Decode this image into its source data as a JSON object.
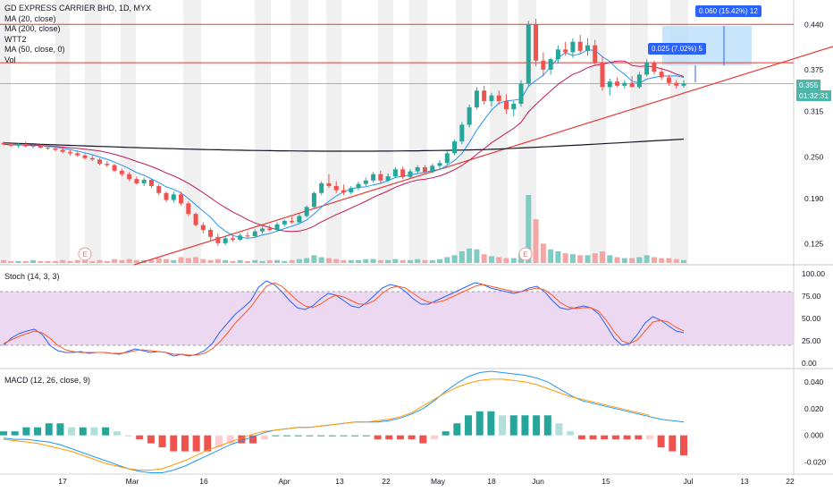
{
  "header": {
    "title": "GD EXPRESS CARRIER BHD, 1D, MYX",
    "indicators": [
      "MA (20, close)",
      "MA (200, close)",
      "WTT2",
      "MA (50, close, 0)",
      "Vol"
    ]
  },
  "stoch_label": "Stoch (14, 3, 3)",
  "macd_label": "MACD (12, 26, close, 9)",
  "price_axis": [
    "0.440",
    "0.375",
    "0.315",
    "0.250",
    "0.190",
    "0.125"
  ],
  "current_price": "0.355",
  "countdown": "01:32:31",
  "stoch_axis": [
    "100.00",
    "75.00",
    "50.00",
    "25.00",
    "0.00"
  ],
  "macd_axis": [
    "0.040",
    "0.020",
    "0.000",
    "-0.020"
  ],
  "x_labels": [
    "17",
    "Mar",
    "16",
    "Apr",
    "13",
    "22",
    "May",
    "18",
    "Jun",
    "15",
    "Jul",
    "13",
    "22"
  ],
  "measure_big": "0.060 (15.42%) 12",
  "measure_small": "0.025 (7.02%) 5",
  "earnings_marker": "E",
  "colors": {
    "up": "#26a69a",
    "down": "#ef5350",
    "ma20": "#2196f3",
    "ma200": "#131722",
    "ma50": "#c2185b",
    "hline": "#e53935",
    "trend": "#e53935",
    "stoch_k": "#2962ff",
    "stoch_d": "#ff5722",
    "stoch_band": "#e1bee7"
  },
  "chart_data": {
    "type": "candlestick",
    "symbol": "GD EXPRESS CARRIER BHD",
    "interval": "1D",
    "horizontal_levels": [
      0.44,
      0.385
    ],
    "ohlc": [
      [
        0.27,
        0.272,
        0.266,
        0.268
      ],
      [
        0.268,
        0.27,
        0.264,
        0.266
      ],
      [
        0.266,
        0.27,
        0.263,
        0.268
      ],
      [
        0.268,
        0.272,
        0.264,
        0.265
      ],
      [
        0.265,
        0.268,
        0.262,
        0.266
      ],
      [
        0.266,
        0.268,
        0.262,
        0.263
      ],
      [
        0.263,
        0.266,
        0.26,
        0.262
      ],
      [
        0.262,
        0.265,
        0.258,
        0.26
      ],
      [
        0.26,
        0.263,
        0.255,
        0.257
      ],
      [
        0.257,
        0.26,
        0.252,
        0.255
      ],
      [
        0.255,
        0.258,
        0.25,
        0.252
      ],
      [
        0.252,
        0.255,
        0.246,
        0.248
      ],
      [
        0.248,
        0.252,
        0.244,
        0.246
      ],
      [
        0.246,
        0.248,
        0.238,
        0.24
      ],
      [
        0.24,
        0.244,
        0.235,
        0.238
      ],
      [
        0.238,
        0.24,
        0.228,
        0.23
      ],
      [
        0.23,
        0.233,
        0.222,
        0.225
      ],
      [
        0.225,
        0.228,
        0.215,
        0.218
      ],
      [
        0.218,
        0.222,
        0.21,
        0.212
      ],
      [
        0.212,
        0.22,
        0.208,
        0.217
      ],
      [
        0.217,
        0.218,
        0.205,
        0.208
      ],
      [
        0.208,
        0.21,
        0.195,
        0.198
      ],
      [
        0.198,
        0.2,
        0.185,
        0.188
      ],
      [
        0.188,
        0.2,
        0.184,
        0.196
      ],
      [
        0.196,
        0.2,
        0.18,
        0.183
      ],
      [
        0.183,
        0.186,
        0.165,
        0.168
      ],
      [
        0.168,
        0.17,
        0.15,
        0.152
      ],
      [
        0.152,
        0.156,
        0.14,
        0.145
      ],
      [
        0.145,
        0.148,
        0.13,
        0.135
      ],
      [
        0.135,
        0.14,
        0.122,
        0.126
      ],
      [
        0.126,
        0.136,
        0.123,
        0.133
      ],
      [
        0.133,
        0.138,
        0.128,
        0.131
      ],
      [
        0.131,
        0.14,
        0.129,
        0.137
      ],
      [
        0.137,
        0.142,
        0.133,
        0.136
      ],
      [
        0.136,
        0.146,
        0.134,
        0.143
      ],
      [
        0.143,
        0.15,
        0.14,
        0.147
      ],
      [
        0.147,
        0.152,
        0.143,
        0.145
      ],
      [
        0.145,
        0.156,
        0.143,
        0.153
      ],
      [
        0.153,
        0.16,
        0.15,
        0.158
      ],
      [
        0.158,
        0.164,
        0.154,
        0.156
      ],
      [
        0.156,
        0.168,
        0.155,
        0.165
      ],
      [
        0.165,
        0.18,
        0.163,
        0.178
      ],
      [
        0.178,
        0.2,
        0.175,
        0.198
      ],
      [
        0.198,
        0.215,
        0.195,
        0.212
      ],
      [
        0.212,
        0.225,
        0.205,
        0.208
      ],
      [
        0.208,
        0.215,
        0.198,
        0.202
      ],
      [
        0.202,
        0.21,
        0.195,
        0.199
      ],
      [
        0.199,
        0.208,
        0.196,
        0.205
      ],
      [
        0.205,
        0.214,
        0.202,
        0.211
      ],
      [
        0.211,
        0.22,
        0.208,
        0.216
      ],
      [
        0.216,
        0.228,
        0.213,
        0.225
      ],
      [
        0.225,
        0.23,
        0.212,
        0.216
      ],
      [
        0.216,
        0.226,
        0.214,
        0.222
      ],
      [
        0.222,
        0.235,
        0.22,
        0.232
      ],
      [
        0.232,
        0.236,
        0.218,
        0.221
      ],
      [
        0.221,
        0.232,
        0.219,
        0.229
      ],
      [
        0.229,
        0.238,
        0.226,
        0.235
      ],
      [
        0.235,
        0.238,
        0.225,
        0.228
      ],
      [
        0.228,
        0.24,
        0.226,
        0.237
      ],
      [
        0.237,
        0.245,
        0.232,
        0.241
      ],
      [
        0.241,
        0.258,
        0.238,
        0.255
      ],
      [
        0.255,
        0.275,
        0.252,
        0.272
      ],
      [
        0.272,
        0.3,
        0.268,
        0.296
      ],
      [
        0.296,
        0.325,
        0.292,
        0.321
      ],
      [
        0.321,
        0.35,
        0.318,
        0.345
      ],
      [
        0.345,
        0.352,
        0.325,
        0.33
      ],
      [
        0.33,
        0.342,
        0.322,
        0.338
      ],
      [
        0.338,
        0.345,
        0.325,
        0.33
      ],
      [
        0.33,
        0.34,
        0.312,
        0.318
      ],
      [
        0.318,
        0.33,
        0.308,
        0.326
      ],
      [
        0.326,
        0.36,
        0.322,
        0.355
      ],
      [
        0.355,
        0.445,
        0.35,
        0.44
      ],
      [
        0.44,
        0.448,
        0.38,
        0.388
      ],
      [
        0.388,
        0.4,
        0.365,
        0.375
      ],
      [
        0.375,
        0.392,
        0.368,
        0.39
      ],
      [
        0.39,
        0.41,
        0.384,
        0.404
      ],
      [
        0.404,
        0.415,
        0.395,
        0.4
      ],
      [
        0.4,
        0.42,
        0.392,
        0.415
      ],
      [
        0.415,
        0.425,
        0.398,
        0.402
      ],
      [
        0.402,
        0.42,
        0.395,
        0.41
      ],
      [
        0.41,
        0.418,
        0.38,
        0.385
      ],
      [
        0.385,
        0.395,
        0.345,
        0.35
      ],
      [
        0.35,
        0.362,
        0.338,
        0.358
      ],
      [
        0.358,
        0.364,
        0.35,
        0.352
      ],
      [
        0.352,
        0.36,
        0.348,
        0.356
      ],
      [
        0.356,
        0.366,
        0.352,
        0.35
      ],
      [
        0.35,
        0.372,
        0.348,
        0.368
      ],
      [
        0.368,
        0.39,
        0.365,
        0.385
      ],
      [
        0.385,
        0.388,
        0.368,
        0.372
      ],
      [
        0.372,
        0.378,
        0.36,
        0.364
      ],
      [
        0.364,
        0.368,
        0.352,
        0.356
      ],
      [
        0.356,
        0.36,
        0.348,
        0.352
      ],
      [
        0.352,
        0.36,
        0.349,
        0.355
      ]
    ],
    "volume": [
      3,
      2,
      2,
      2,
      3,
      2,
      2,
      2,
      3,
      2,
      3,
      3,
      2,
      3,
      2,
      4,
      3,
      4,
      3,
      3,
      3,
      5,
      4,
      3,
      6,
      5,
      6,
      4,
      3,
      4,
      3,
      2,
      3,
      2,
      3,
      2,
      3,
      3,
      2,
      3,
      4,
      5,
      8,
      6,
      5,
      4,
      3,
      3,
      3,
      4,
      4,
      3,
      3,
      4,
      3,
      3,
      4,
      3,
      3,
      4,
      6,
      8,
      12,
      15,
      14,
      9,
      7,
      6,
      5,
      5,
      10,
      70,
      45,
      20,
      14,
      12,
      10,
      9,
      8,
      8,
      10,
      12,
      8,
      6,
      5,
      5,
      6,
      8,
      6,
      5,
      5,
      4,
      3
    ],
    "stoch_k": [
      20,
      28,
      33,
      36,
      38,
      32,
      20,
      14,
      12,
      12,
      13,
      11,
      12,
      12,
      11,
      10,
      13,
      16,
      14,
      12,
      13,
      12,
      8,
      10,
      8,
      10,
      14,
      22,
      35,
      45,
      55,
      62,
      70,
      85,
      92,
      88,
      80,
      70,
      62,
      60,
      64,
      72,
      78,
      76,
      70,
      64,
      62,
      68,
      76,
      84,
      88,
      86,
      80,
      72,
      66,
      66,
      70,
      74,
      78,
      82,
      86,
      90,
      88,
      84,
      82,
      80,
      78,
      80,
      84,
      86,
      80,
      70,
      62,
      60,
      62,
      64,
      62,
      55,
      42,
      28,
      20,
      22,
      32,
      45,
      52,
      48,
      42,
      36,
      34
    ],
    "stoch_d": [
      22,
      26,
      30,
      33,
      36,
      34,
      28,
      20,
      15,
      13,
      12,
      12,
      12,
      12,
      11,
      11,
      12,
      14,
      15,
      14,
      13,
      12,
      10,
      10,
      9,
      9,
      11,
      16,
      24,
      34,
      45,
      54,
      63,
      75,
      86,
      90,
      86,
      78,
      70,
      64,
      62,
      66,
      72,
      76,
      74,
      70,
      66,
      66,
      70,
      78,
      84,
      86,
      84,
      78,
      72,
      68,
      68,
      70,
      74,
      78,
      82,
      86,
      88,
      86,
      84,
      82,
      80,
      80,
      82,
      84,
      82,
      76,
      68,
      63,
      61,
      62,
      62,
      58,
      48,
      35,
      25,
      22,
      26,
      36,
      46,
      48,
      46,
      40,
      36
    ],
    "macd_line": [
      -0.002,
      -0.003,
      -0.003,
      -0.004,
      -0.005,
      -0.007,
      -0.01,
      -0.013,
      -0.016,
      -0.019,
      -0.022,
      -0.025,
      -0.027,
      -0.028,
      -0.028,
      -0.026,
      -0.023,
      -0.019,
      -0.015,
      -0.011,
      -0.007,
      -0.004,
      -0.001,
      0.002,
      0.004,
      0.005,
      0.006,
      0.006,
      0.007,
      0.008,
      0.009,
      0.01,
      0.01,
      0.01,
      0.011,
      0.013,
      0.016,
      0.02,
      0.026,
      0.033,
      0.039,
      0.044,
      0.047,
      0.048,
      0.047,
      0.046,
      0.045,
      0.043,
      0.04,
      0.035,
      0.03,
      0.026,
      0.024,
      0.022,
      0.02,
      0.018,
      0.016,
      0.014,
      0.012,
      0.011,
      0.01
    ],
    "macd_signal": [
      -0.003,
      -0.004,
      -0.005,
      -0.006,
      -0.008,
      -0.01,
      -0.012,
      -0.015,
      -0.018,
      -0.021,
      -0.023,
      -0.025,
      -0.026,
      -0.026,
      -0.025,
      -0.022,
      -0.019,
      -0.015,
      -0.011,
      -0.008,
      -0.005,
      -0.002,
      0.001,
      0.003,
      0.004,
      0.005,
      0.006,
      0.006,
      0.007,
      0.008,
      0.009,
      0.01,
      0.01,
      0.011,
      0.012,
      0.014,
      0.017,
      0.022,
      0.027,
      0.032,
      0.036,
      0.039,
      0.041,
      0.042,
      0.042,
      0.041,
      0.04,
      0.038,
      0.035,
      0.032,
      0.029,
      0.027,
      0.025,
      0.023,
      0.021,
      0.019,
      0.017,
      0.015
    ],
    "ylim_price": [
      0.095,
      0.475
    ]
  }
}
